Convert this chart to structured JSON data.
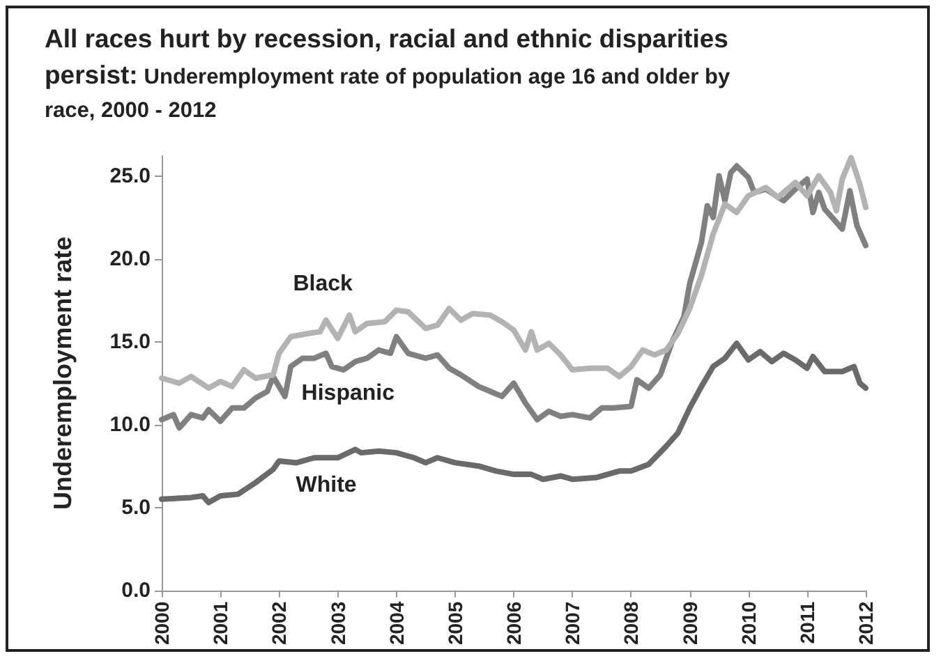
{
  "chart_data": {
    "type": "line",
    "title": "All races hurt by recession, racial and ethnic disparities persist:",
    "subtitle": "Underemployment rate of population age 16 and older by race, 2000 - 2012",
    "ylabel": "Underemployment rate",
    "xlim": [
      2000,
      2012
    ],
    "xticks": [
      2000,
      2001,
      2002,
      2003,
      2004,
      2005,
      2006,
      2007,
      2008,
      2009,
      2010,
      2011,
      2012
    ],
    "ylim": [
      0,
      26.2
    ],
    "yticks": [
      {
        "value": 0,
        "label": "0.0"
      },
      {
        "value": 5,
        "label": "5.0"
      },
      {
        "value": 10,
        "label": "10.0"
      },
      {
        "value": 15,
        "label": "15.0"
      },
      {
        "value": 20,
        "label": "20.0"
      },
      {
        "value": 25,
        "label": "25.0"
      }
    ],
    "grid": false,
    "legend": false,
    "marker": "none",
    "line_style": "solid",
    "series": [
      {
        "name": "Black",
        "color": "#b3b3b3",
        "x": [
          2000,
          2000.3,
          2000.5,
          2000.8,
          2001,
          2001.2,
          2001.4,
          2001.6,
          2001.9,
          2002,
          2002.2,
          2002.5,
          2002.7,
          2002.8,
          2003,
          2003.2,
          2003.3,
          2003.5,
          2003.8,
          2004,
          2004.2,
          2004.5,
          2004.7,
          2004.9,
          2005.1,
          2005.3,
          2005.6,
          2005.8,
          2006,
          2006.2,
          2006.3,
          2006.4,
          2006.6,
          2006.8,
          2007,
          2007.3,
          2007.6,
          2007.8,
          2008,
          2008.2,
          2008.4,
          2008.6,
          2008.8,
          2009,
          2009.2,
          2009.4,
          2009.6,
          2009.8,
          2010,
          2010.3,
          2010.5,
          2010.8,
          2011,
          2011.2,
          2011.4,
          2011.5,
          2011.6,
          2011.75,
          2011.9,
          2012
        ],
        "values": [
          12.8,
          12.5,
          12.9,
          12.2,
          12.6,
          12.3,
          13.3,
          12.8,
          13,
          14.3,
          15.3,
          15.5,
          15.6,
          16.3,
          15.2,
          16.6,
          15.6,
          16.1,
          16.2,
          16.9,
          16.8,
          15.8,
          16,
          17,
          16.3,
          16.7,
          16.6,
          16.2,
          15.7,
          14.5,
          15.6,
          14.5,
          14.9,
          14.2,
          13.3,
          13.4,
          13.4,
          12.9,
          13.5,
          14.5,
          14.2,
          14.5,
          15.5,
          17,
          19,
          21.5,
          23.3,
          22.8,
          23.8,
          24.3,
          23.7,
          24.6,
          23.8,
          25,
          24,
          22.9,
          24.8,
          26.1,
          24.5,
          23.1
        ]
      },
      {
        "name": "Hispanic",
        "color": "#808080",
        "x": [
          2000,
          2000.2,
          2000.3,
          2000.5,
          2000.7,
          2000.8,
          2001,
          2001.2,
          2001.4,
          2001.6,
          2001.8,
          2001.9,
          2002.1,
          2002.2,
          2002.4,
          2002.6,
          2002.8,
          2002.9,
          2003.1,
          2003.3,
          2003.5,
          2003.7,
          2003.9,
          2004,
          2004.2,
          2004.5,
          2004.7,
          2004.9,
          2005.1,
          2005.4,
          2005.6,
          2005.8,
          2006,
          2006.2,
          2006.4,
          2006.6,
          2006.8,
          2007,
          2007.3,
          2007.5,
          2007.7,
          2008,
          2008.1,
          2008.3,
          2008.5,
          2008.7,
          2008.9,
          2009,
          2009.2,
          2009.3,
          2009.4,
          2009.5,
          2009.6,
          2009.7,
          2009.8,
          2010,
          2010.1,
          2010.3,
          2010.6,
          2010.8,
          2011,
          2011.1,
          2011.2,
          2011.3,
          2011.6,
          2011.73,
          2011.85,
          2012
        ],
        "values": [
          10.3,
          10.6,
          9.8,
          10.6,
          10.4,
          10.9,
          10.2,
          11,
          11,
          11.6,
          12,
          12.9,
          11.7,
          13.5,
          14,
          14,
          14.3,
          13.5,
          13.3,
          13.8,
          14,
          14.5,
          14.3,
          15.3,
          14.3,
          14,
          14.2,
          13.4,
          13,
          12.3,
          12,
          11.7,
          12.5,
          11.3,
          10.3,
          10.8,
          10.5,
          10.6,
          10.4,
          11,
          11,
          11.1,
          12.7,
          12.2,
          13,
          15,
          16.5,
          18.5,
          21,
          23.2,
          22.5,
          25,
          23.5,
          25.2,
          25.6,
          24.9,
          24,
          24.2,
          23.5,
          24.2,
          24.8,
          22.8,
          24,
          23,
          21.8,
          24.1,
          22,
          20.8
        ]
      },
      {
        "name": "White",
        "color": "#6a6a6a",
        "x": [
          2000,
          2000.5,
          2000.7,
          2000.8,
          2001,
          2001.3,
          2001.6,
          2001.9,
          2002,
          2002.3,
          2002.6,
          2003,
          2003.3,
          2003.4,
          2003.7,
          2004,
          2004.3,
          2004.5,
          2004.7,
          2005,
          2005.4,
          2005.7,
          2006,
          2006.3,
          2006.5,
          2006.8,
          2007,
          2007.4,
          2007.8,
          2008,
          2008.3,
          2008.6,
          2008.8,
          2009,
          2009.2,
          2009.4,
          2009.6,
          2009.8,
          2010,
          2010.2,
          2010.4,
          2010.6,
          2010.8,
          2011,
          2011.1,
          2011.3,
          2011.6,
          2011.8,
          2011.9,
          2012
        ],
        "values": [
          5.5,
          5.6,
          5.7,
          5.3,
          5.7,
          5.8,
          6.5,
          7.3,
          7.8,
          7.7,
          8,
          8,
          8.5,
          8.3,
          8.4,
          8.3,
          8,
          7.7,
          8,
          7.7,
          7.5,
          7.2,
          7,
          7,
          6.7,
          6.9,
          6.7,
          6.8,
          7.2,
          7.2,
          7.6,
          8.7,
          9.5,
          11,
          12.3,
          13.5,
          14,
          14.9,
          13.9,
          14.4,
          13.8,
          14.3,
          13.9,
          13.4,
          14.1,
          13.2,
          13.2,
          13.5,
          12.5,
          12.2
        ]
      }
    ]
  }
}
